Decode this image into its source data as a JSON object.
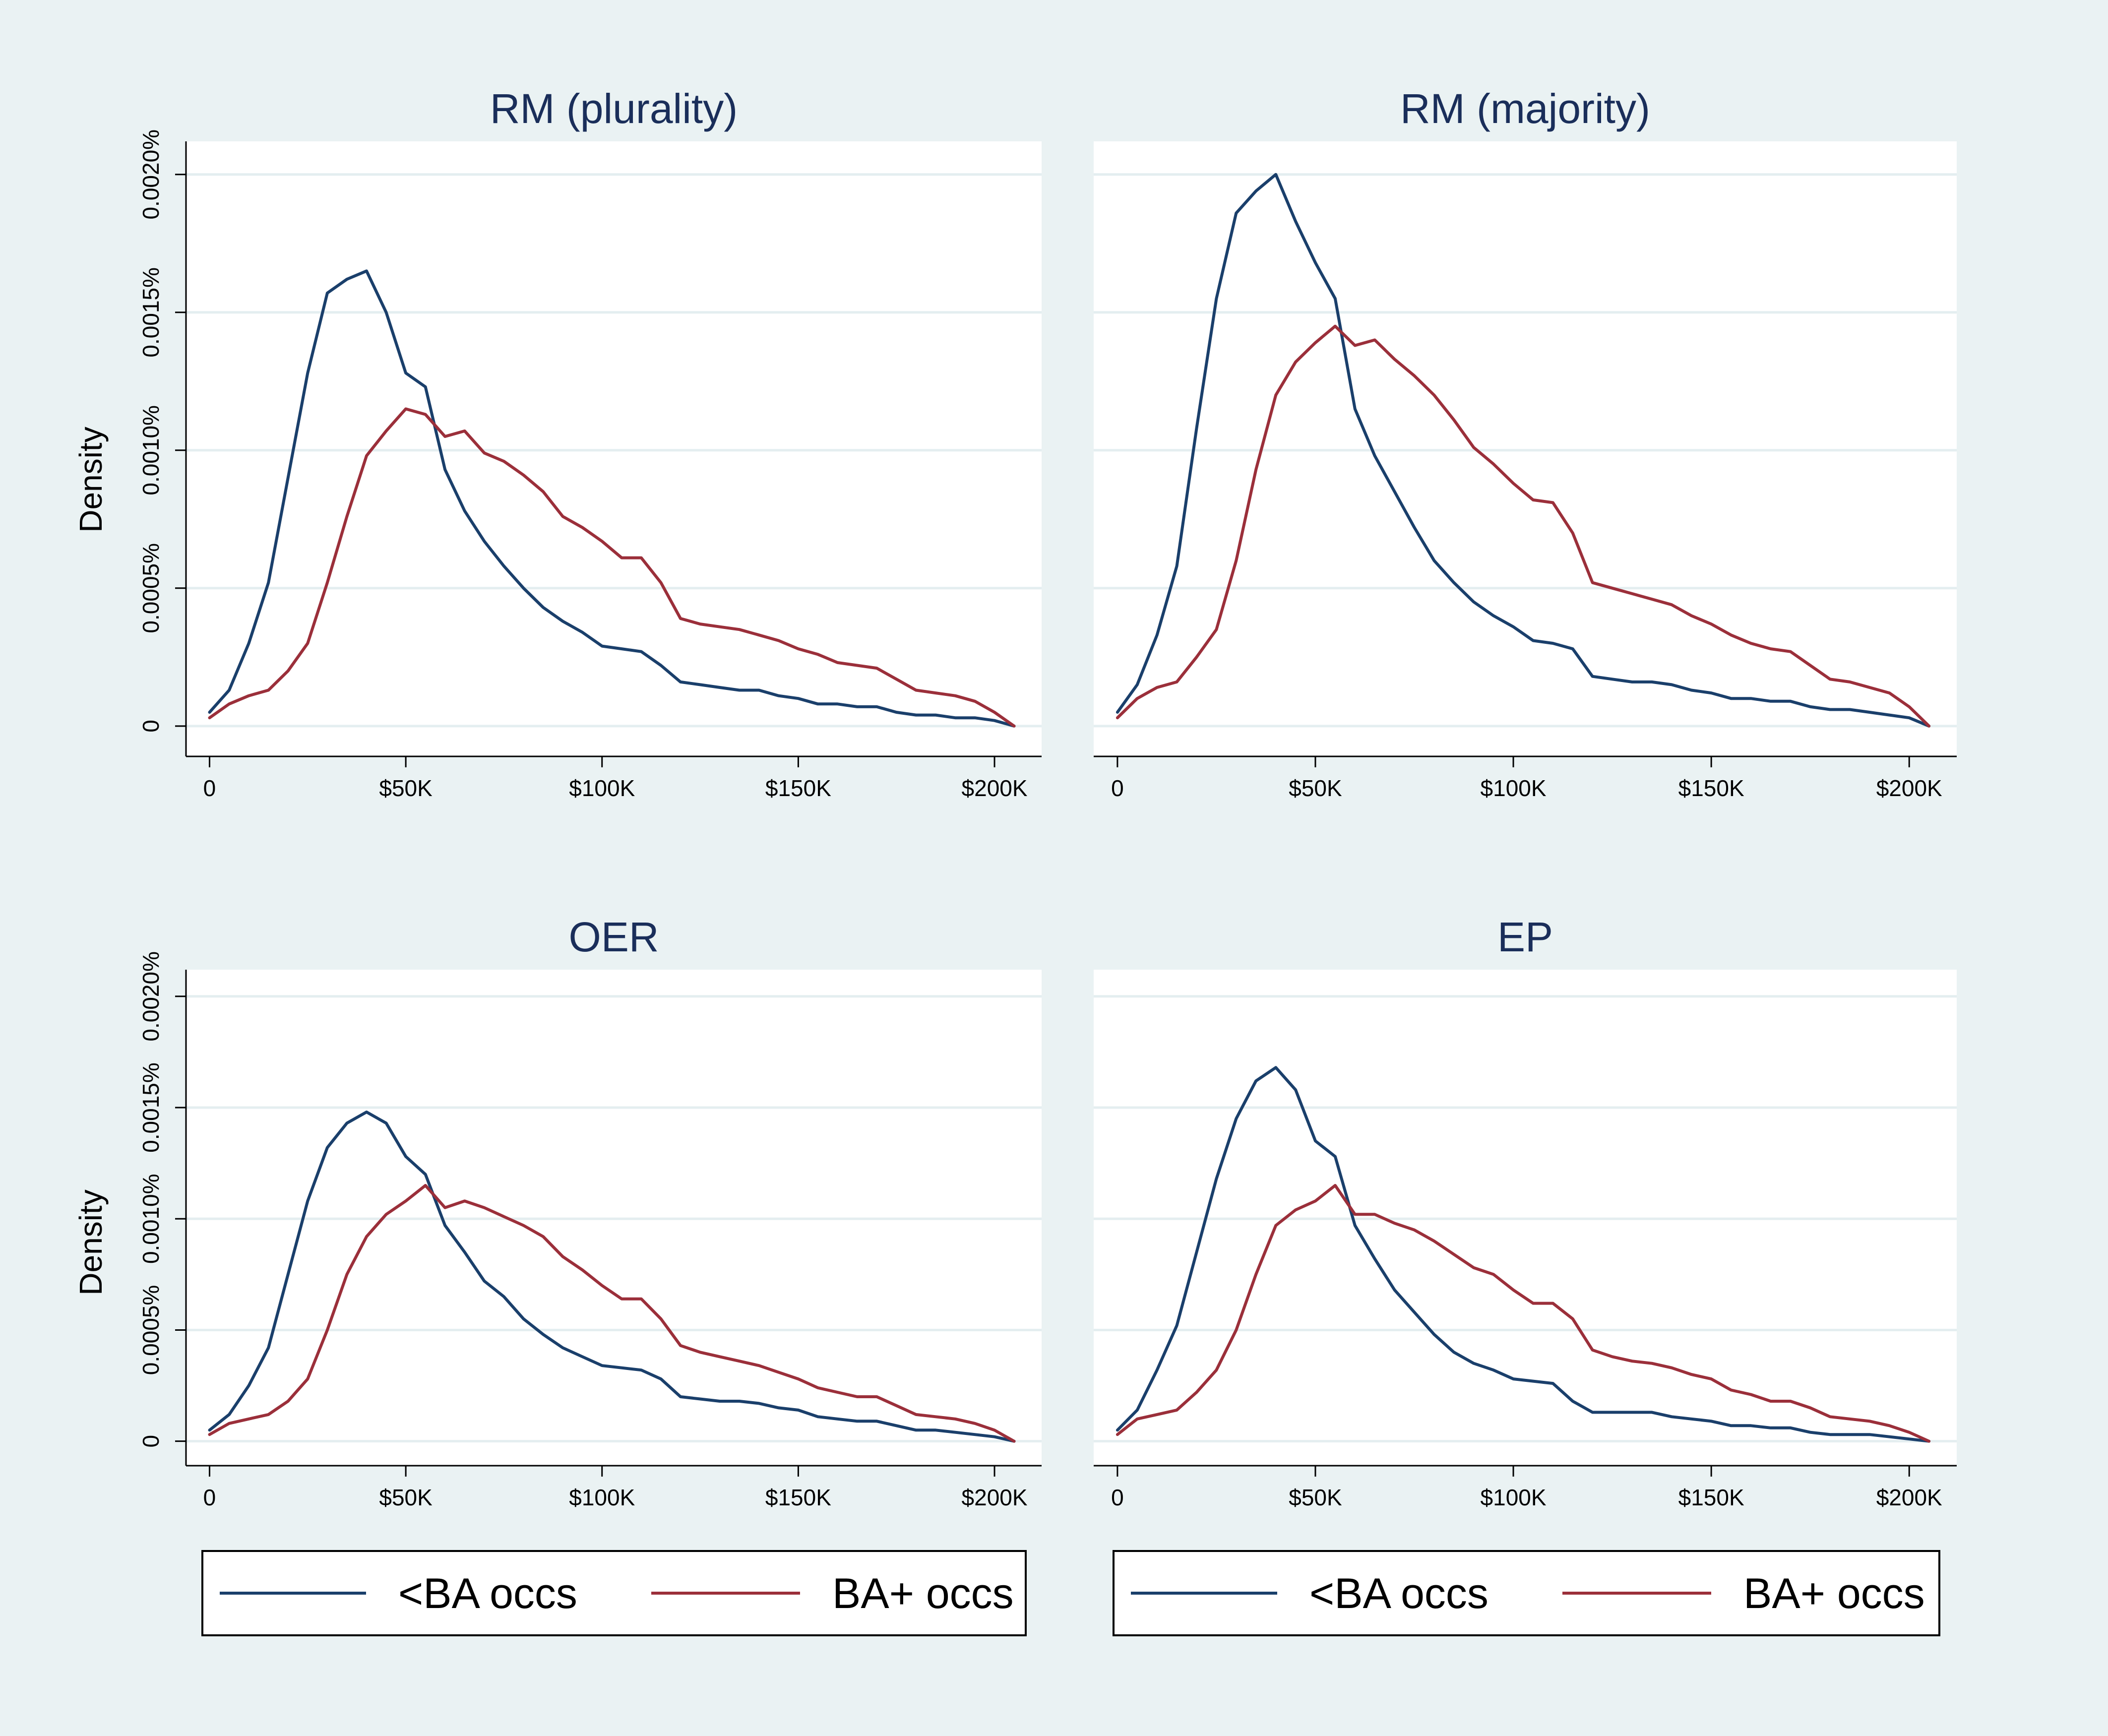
{
  "chart_data": [
    {
      "type": "line",
      "title": "RM (plurality)",
      "ylabel": "Density",
      "xlabel": "",
      "x_ticks": [
        0,
        50000,
        100000,
        150000,
        200000
      ],
      "x_tick_labels": [
        "0",
        "$50K",
        "$100K",
        "$150K",
        "$200K"
      ],
      "y_ticks": [
        0,
        0.0005,
        0.001,
        0.0015,
        0.002
      ],
      "y_tick_labels": [
        "0",
        "0.0005%",
        "0.0010%",
        "0.0015%",
        "0.0020%"
      ],
      "xlim": [
        -6000,
        212000
      ],
      "ylim": [
        -0.00011,
        0.00212
      ],
      "grid": true,
      "x": [
        0,
        5000,
        10000,
        15000,
        20000,
        25000,
        30000,
        35000,
        40000,
        45000,
        50000,
        55000,
        60000,
        65000,
        70000,
        75000,
        80000,
        85000,
        90000,
        95000,
        100000,
        105000,
        110000,
        115000,
        120000,
        125000,
        130000,
        135000,
        140000,
        145000,
        150000,
        155000,
        160000,
        165000,
        170000,
        175000,
        180000,
        185000,
        190000,
        195000,
        200000,
        205000
      ],
      "series": [
        {
          "name": "<BA occs",
          "color": "#1a3f6b",
          "values": [
            5e-05,
            0.00013,
            0.0003,
            0.00052,
            0.0009,
            0.00128,
            0.00157,
            0.00162,
            0.00165,
            0.0015,
            0.00128,
            0.00123,
            0.00093,
            0.00078,
            0.00067,
            0.00058,
            0.0005,
            0.00043,
            0.00038,
            0.00034,
            0.00029,
            0.00028,
            0.00027,
            0.00022,
            0.00016,
            0.00015,
            0.00014,
            0.00013,
            0.00013,
            0.00011,
            0.0001,
            8e-05,
            8e-05,
            7e-05,
            7e-05,
            5e-05,
            4e-05,
            4e-05,
            3e-05,
            3e-05,
            2e-05,
            0.0
          ]
        },
        {
          "name": "BA+ occs",
          "color": "#9b2f3a",
          "values": [
            3e-05,
            8e-05,
            0.00011,
            0.00013,
            0.0002,
            0.0003,
            0.00052,
            0.00076,
            0.00098,
            0.00107,
            0.00115,
            0.00113,
            0.00105,
            0.00107,
            0.00099,
            0.00096,
            0.00091,
            0.00085,
            0.00076,
            0.00072,
            0.00067,
            0.00061,
            0.00061,
            0.00052,
            0.00039,
            0.00037,
            0.00036,
            0.00035,
            0.00033,
            0.00031,
            0.00028,
            0.00026,
            0.00023,
            0.00022,
            0.00021,
            0.00017,
            0.00013,
            0.00012,
            0.00011,
            9e-05,
            5e-05,
            0.0
          ]
        }
      ]
    },
    {
      "type": "line",
      "title": "RM (majority)",
      "ylabel": "",
      "xlabel": "",
      "x_ticks": [
        0,
        50000,
        100000,
        150000,
        200000
      ],
      "x_tick_labels": [
        "0",
        "$50K",
        "$100K",
        "$150K",
        "$200K"
      ],
      "y_ticks": [
        0,
        0.0005,
        0.001,
        0.0015,
        0.002
      ],
      "y_tick_labels": [],
      "xlim": [
        -6000,
        212000
      ],
      "ylim": [
        -0.00011,
        0.00212
      ],
      "grid": true,
      "x": [
        0,
        5000,
        10000,
        15000,
        20000,
        25000,
        30000,
        35000,
        40000,
        45000,
        50000,
        55000,
        60000,
        65000,
        70000,
        75000,
        80000,
        85000,
        90000,
        95000,
        100000,
        105000,
        110000,
        115000,
        120000,
        125000,
        130000,
        135000,
        140000,
        145000,
        150000,
        155000,
        160000,
        165000,
        170000,
        175000,
        180000,
        185000,
        190000,
        195000,
        200000,
        205000
      ],
      "series": [
        {
          "name": "<BA occs",
          "color": "#1a3f6b",
          "values": [
            5e-05,
            0.00015,
            0.00033,
            0.00058,
            0.00108,
            0.00155,
            0.00186,
            0.00194,
            0.002,
            0.00183,
            0.00168,
            0.00155,
            0.00115,
            0.00098,
            0.00085,
            0.00072,
            0.0006,
            0.00052,
            0.00045,
            0.0004,
            0.00036,
            0.00031,
            0.0003,
            0.00028,
            0.00018,
            0.00017,
            0.00016,
            0.00016,
            0.00015,
            0.00013,
            0.00012,
            0.0001,
            0.0001,
            9e-05,
            9e-05,
            7e-05,
            6e-05,
            6e-05,
            5e-05,
            4e-05,
            3e-05,
            0.0
          ]
        },
        {
          "name": "BA+ occs",
          "color": "#9b2f3a",
          "values": [
            3e-05,
            0.0001,
            0.00014,
            0.00016,
            0.00025,
            0.00035,
            0.0006,
            0.00093,
            0.0012,
            0.00132,
            0.00139,
            0.00145,
            0.00138,
            0.0014,
            0.00133,
            0.00127,
            0.0012,
            0.00111,
            0.00101,
            0.00095,
            0.00088,
            0.00082,
            0.00081,
            0.0007,
            0.00052,
            0.0005,
            0.00048,
            0.00046,
            0.00044,
            0.0004,
            0.00037,
            0.00033,
            0.0003,
            0.00028,
            0.00027,
            0.00022,
            0.00017,
            0.00016,
            0.00014,
            0.00012,
            7e-05,
            0.0
          ]
        }
      ]
    },
    {
      "type": "line",
      "title": "OER",
      "ylabel": "Density",
      "xlabel": "",
      "x_ticks": [
        0,
        50000,
        100000,
        150000,
        200000
      ],
      "x_tick_labels": [
        "0",
        "$50K",
        "$100K",
        "$150K",
        "$200K"
      ],
      "y_ticks": [
        0,
        0.0005,
        0.001,
        0.0015,
        0.002
      ],
      "y_tick_labels": [
        "0",
        "0.0005%",
        "0.0010%",
        "0.0015%",
        "0.0020%"
      ],
      "xlim": [
        -6000,
        212000
      ],
      "ylim": [
        -0.00011,
        0.00212
      ],
      "grid": true,
      "x": [
        0,
        5000,
        10000,
        15000,
        20000,
        25000,
        30000,
        35000,
        40000,
        45000,
        50000,
        55000,
        60000,
        65000,
        70000,
        75000,
        80000,
        85000,
        90000,
        95000,
        100000,
        105000,
        110000,
        115000,
        120000,
        125000,
        130000,
        135000,
        140000,
        145000,
        150000,
        155000,
        160000,
        165000,
        170000,
        175000,
        180000,
        185000,
        190000,
        195000,
        200000,
        205000
      ],
      "series": [
        {
          "name": "<BA occs",
          "color": "#1a3f6b",
          "values": [
            5e-05,
            0.00012,
            0.00025,
            0.00042,
            0.00075,
            0.00108,
            0.00132,
            0.00143,
            0.00148,
            0.00143,
            0.00128,
            0.0012,
            0.00097,
            0.00085,
            0.00072,
            0.00065,
            0.00055,
            0.00048,
            0.00042,
            0.00038,
            0.00034,
            0.00033,
            0.00032,
            0.00028,
            0.0002,
            0.00019,
            0.00018,
            0.00018,
            0.00017,
            0.00015,
            0.00014,
            0.00011,
            0.0001,
            9e-05,
            9e-05,
            7e-05,
            5e-05,
            5e-05,
            4e-05,
            3e-05,
            2e-05,
            0.0
          ]
        },
        {
          "name": "BA+ occs",
          "color": "#9b2f3a",
          "values": [
            3e-05,
            8e-05,
            0.0001,
            0.00012,
            0.00018,
            0.00028,
            0.0005,
            0.00075,
            0.00092,
            0.00102,
            0.00108,
            0.00115,
            0.00105,
            0.00108,
            0.00105,
            0.00101,
            0.00097,
            0.00092,
            0.00083,
            0.00077,
            0.0007,
            0.00064,
            0.00064,
            0.00055,
            0.00043,
            0.0004,
            0.00038,
            0.00036,
            0.00034,
            0.00031,
            0.00028,
            0.00024,
            0.00022,
            0.0002,
            0.0002,
            0.00016,
            0.00012,
            0.00011,
            0.0001,
            8e-05,
            5e-05,
            0.0
          ]
        }
      ]
    },
    {
      "type": "line",
      "title": "EP",
      "ylabel": "",
      "xlabel": "",
      "x_ticks": [
        0,
        50000,
        100000,
        150000,
        200000
      ],
      "x_tick_labels": [
        "0",
        "$50K",
        "$100K",
        "$150K",
        "$200K"
      ],
      "y_ticks": [
        0,
        0.0005,
        0.001,
        0.0015,
        0.002
      ],
      "y_tick_labels": [],
      "xlim": [
        -6000,
        212000
      ],
      "ylim": [
        -0.00011,
        0.00212
      ],
      "grid": true,
      "x": [
        0,
        5000,
        10000,
        15000,
        20000,
        25000,
        30000,
        35000,
        40000,
        45000,
        50000,
        55000,
        60000,
        65000,
        70000,
        75000,
        80000,
        85000,
        90000,
        95000,
        100000,
        105000,
        110000,
        115000,
        120000,
        125000,
        130000,
        135000,
        140000,
        145000,
        150000,
        155000,
        160000,
        165000,
        170000,
        175000,
        180000,
        185000,
        190000,
        195000,
        200000,
        205000
      ],
      "series": [
        {
          "name": "<BA occs",
          "color": "#1a3f6b",
          "values": [
            5e-05,
            0.00014,
            0.00032,
            0.00052,
            0.00085,
            0.00118,
            0.00145,
            0.00162,
            0.00168,
            0.00158,
            0.00135,
            0.00128,
            0.00097,
            0.00082,
            0.00068,
            0.00058,
            0.00048,
            0.0004,
            0.00035,
            0.00032,
            0.00028,
            0.00027,
            0.00026,
            0.00018,
            0.00013,
            0.00013,
            0.00013,
            0.00013,
            0.00011,
            0.0001,
            9e-05,
            7e-05,
            7e-05,
            6e-05,
            6e-05,
            4e-05,
            3e-05,
            3e-05,
            3e-05,
            2e-05,
            1e-05,
            0.0
          ]
        },
        {
          "name": "BA+ occs",
          "color": "#9b2f3a",
          "values": [
            3e-05,
            0.0001,
            0.00012,
            0.00014,
            0.00022,
            0.00032,
            0.0005,
            0.00075,
            0.00097,
            0.00104,
            0.00108,
            0.00115,
            0.00102,
            0.00102,
            0.00098,
            0.00095,
            0.0009,
            0.00084,
            0.00078,
            0.00075,
            0.00068,
            0.00062,
            0.00062,
            0.00055,
            0.00041,
            0.00038,
            0.00036,
            0.00035,
            0.00033,
            0.0003,
            0.00028,
            0.00023,
            0.00021,
            0.00018,
            0.00018,
            0.00015,
            0.00011,
            0.0001,
            9e-05,
            7e-05,
            4e-05,
            0.0
          ]
        }
      ]
    }
  ],
  "legends": [
    {
      "items": [
        {
          "label": "<BA occs",
          "color": "#1a3f6b"
        },
        {
          "label": "BA+ occs",
          "color": "#9b2f3a"
        }
      ]
    },
    {
      "items": [
        {
          "label": "<BA occs",
          "color": "#1a3f6b"
        },
        {
          "label": "BA+ occs",
          "color": "#9b2f3a"
        }
      ]
    }
  ]
}
